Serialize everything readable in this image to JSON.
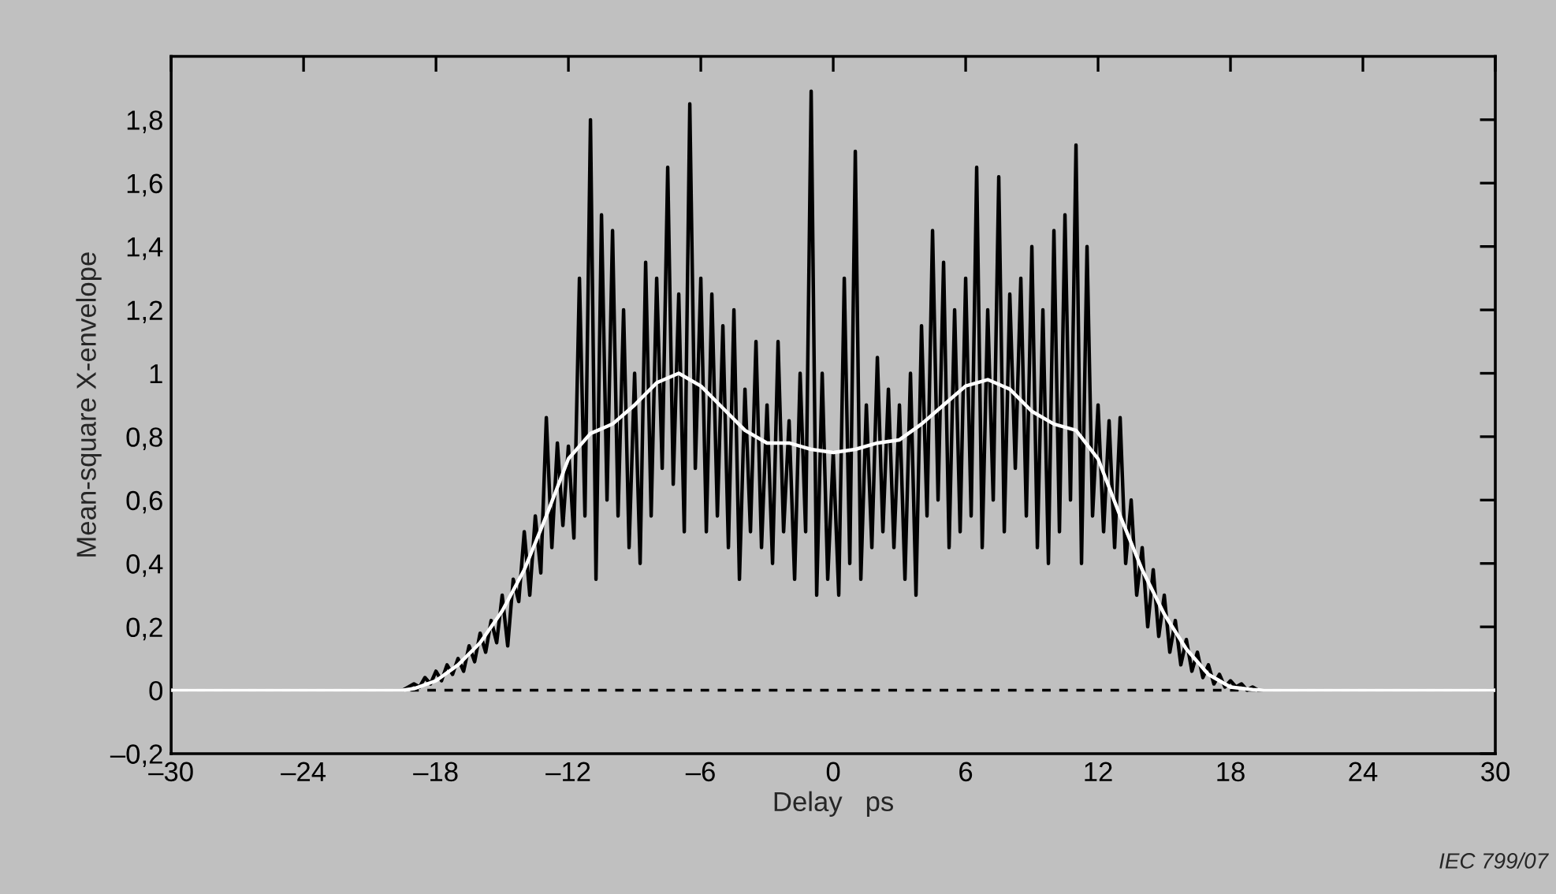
{
  "chart_data": {
    "type": "line",
    "xlabel": "Delay   ps",
    "ylabel": "Mean-square X-envelope",
    "xlim": [
      -30,
      30
    ],
    "ylim": [
      -0.2,
      2.0
    ],
    "xticks": [
      {
        "value": -30,
        "label": "–30"
      },
      {
        "value": -24,
        "label": "–24"
      },
      {
        "value": -18,
        "label": "–18"
      },
      {
        "value": -12,
        "label": "–12"
      },
      {
        "value": -6,
        "label": "–6"
      },
      0,
      6,
      12,
      18,
      24,
      30
    ],
    "yticks": [
      {
        "value": -0.2,
        "label": "–0,2"
      },
      0,
      {
        "value": 0.2,
        "label": "0,2"
      },
      {
        "value": 0.4,
        "label": "0,4"
      },
      {
        "value": 0.6,
        "label": "0,6"
      },
      {
        "value": 0.8,
        "label": "0,8"
      },
      1,
      {
        "value": 1.2,
        "label": "1,2"
      },
      {
        "value": 1.4,
        "label": "1,4"
      },
      {
        "value": 1.6,
        "label": "1,6"
      },
      {
        "value": 1.8,
        "label": "1,8"
      }
    ],
    "grid": false,
    "legend": false,
    "marker": "none",
    "line_style": "solid",
    "ref_lines": [
      {
        "axis": "y",
        "value": 0,
        "label": null,
        "color": "#000000",
        "line_style": "dashed"
      }
    ],
    "series": [
      {
        "color": "#000000",
        "x": [
          -30,
          -19.5,
          -19.25,
          -19,
          -18.75,
          -18.5,
          -18.25,
          -18,
          -17.75,
          -17.5,
          -17.25,
          -17,
          -16.75,
          -16.5,
          -16.25,
          -16,
          -15.75,
          -15.5,
          -15.25,
          -15,
          -14.75,
          -14.5,
          -14.25,
          -14,
          -13.75,
          -13.5,
          -13.25,
          -13,
          -12.75,
          -12.5,
          -12.25,
          -12,
          -11.75,
          -11.5,
          -11.25,
          -11,
          -10.75,
          -10.5,
          -10.25,
          -10,
          -9.75,
          -9.5,
          -9.25,
          -9,
          -8.75,
          -8.5,
          -8.25,
          -8,
          -7.75,
          -7.5,
          -7.25,
          -7,
          -6.75,
          -6.5,
          -6.25,
          -6,
          -5.75,
          -5.5,
          -5.25,
          -5,
          -4.75,
          -4.5,
          -4.25,
          -4,
          -3.75,
          -3.5,
          -3.25,
          -3,
          -2.75,
          -2.5,
          -2.25,
          -2,
          -1.75,
          -1.5,
          -1.25,
          -1,
          -0.75,
          -0.5,
          -0.25,
          0,
          0.25,
          0.5,
          0.75,
          1,
          1.25,
          1.5,
          1.75,
          2,
          2.25,
          2.5,
          2.75,
          3,
          3.25,
          3.5,
          3.75,
          4,
          4.25,
          4.5,
          4.75,
          5,
          5.25,
          5.5,
          5.75,
          6,
          6.25,
          6.5,
          6.75,
          7,
          7.25,
          7.5,
          7.75,
          8,
          8.25,
          8.5,
          8.75,
          9,
          9.25,
          9.5,
          9.75,
          10,
          10.25,
          10.5,
          10.75,
          11,
          11.25,
          11.5,
          11.75,
          12,
          12.25,
          12.5,
          12.75,
          13,
          13.25,
          13.5,
          13.75,
          14,
          14.25,
          14.5,
          14.75,
          15,
          15.25,
          15.5,
          15.75,
          16,
          16.25,
          16.5,
          16.75,
          17,
          17.25,
          17.5,
          17.75,
          18,
          18.25,
          18.5,
          18.75,
          19,
          19.25,
          19.5,
          30
        ],
        "values": [
          0,
          0,
          0.01,
          0.02,
          0.01,
          0.04,
          0.02,
          0.06,
          0.03,
          0.08,
          0.05,
          0.1,
          0.06,
          0.14,
          0.09,
          0.18,
          0.12,
          0.22,
          0.15,
          0.3,
          0.14,
          0.35,
          0.28,
          0.5,
          0.3,
          0.55,
          0.37,
          0.86,
          0.45,
          0.78,
          0.52,
          0.77,
          0.48,
          1.3,
          0.55,
          1.8,
          0.35,
          1.5,
          0.6,
          1.45,
          0.55,
          1.2,
          0.45,
          1.0,
          0.4,
          1.35,
          0.55,
          1.3,
          0.7,
          1.65,
          0.65,
          1.25,
          0.5,
          1.85,
          0.7,
          1.3,
          0.5,
          1.25,
          0.55,
          1.15,
          0.45,
          1.2,
          0.35,
          0.95,
          0.5,
          1.1,
          0.45,
          0.9,
          0.4,
          1.1,
          0.5,
          0.85,
          0.35,
          1.0,
          0.5,
          1.89,
          0.3,
          1.0,
          0.35,
          0.75,
          0.3,
          1.3,
          0.4,
          1.7,
          0.35,
          0.9,
          0.45,
          1.05,
          0.5,
          0.95,
          0.45,
          0.9,
          0.35,
          1.0,
          0.3,
          1.15,
          0.55,
          1.45,
          0.6,
          1.35,
          0.45,
          1.2,
          0.5,
          1.3,
          0.55,
          1.65,
          0.45,
          1.2,
          0.6,
          1.62,
          0.5,
          1.25,
          0.7,
          1.3,
          0.55,
          1.4,
          0.45,
          1.2,
          0.4,
          1.45,
          0.5,
          1.5,
          0.6,
          1.72,
          0.4,
          1.4,
          0.55,
          0.9,
          0.5,
          0.85,
          0.45,
          0.86,
          0.4,
          0.6,
          0.3,
          0.45,
          0.2,
          0.38,
          0.17,
          0.3,
          0.12,
          0.22,
          0.08,
          0.16,
          0.06,
          0.12,
          0.04,
          0.08,
          0.02,
          0.05,
          0.01,
          0.03,
          0.01,
          0.02,
          0,
          0.01,
          0,
          0,
          0
        ]
      },
      {
        "color": "#ffffff",
        "x": [
          -30,
          -19.5,
          -19,
          -18,
          -17,
          -16,
          -15,
          -14,
          -13,
          -12,
          -11,
          -10,
          -9,
          -8,
          -7,
          -6,
          -5,
          -4,
          -3,
          -2,
          -1,
          0,
          1,
          2,
          3,
          4,
          5,
          6,
          7,
          8,
          9,
          10,
          11,
          12,
          13,
          14,
          15,
          16,
          17,
          18,
          19,
          19.5,
          30
        ],
        "values": [
          0,
          0,
          0.005,
          0.03,
          0.08,
          0.15,
          0.25,
          0.38,
          0.55,
          0.73,
          0.81,
          0.84,
          0.9,
          0.97,
          1.0,
          0.96,
          0.89,
          0.82,
          0.78,
          0.78,
          0.76,
          0.75,
          0.76,
          0.78,
          0.79,
          0.84,
          0.9,
          0.96,
          0.98,
          0.95,
          0.88,
          0.84,
          0.82,
          0.73,
          0.55,
          0.38,
          0.24,
          0.13,
          0.05,
          0.01,
          0.002,
          0,
          0
        ]
      }
    ],
    "annotations": [
      "IEC 799/07"
    ]
  }
}
